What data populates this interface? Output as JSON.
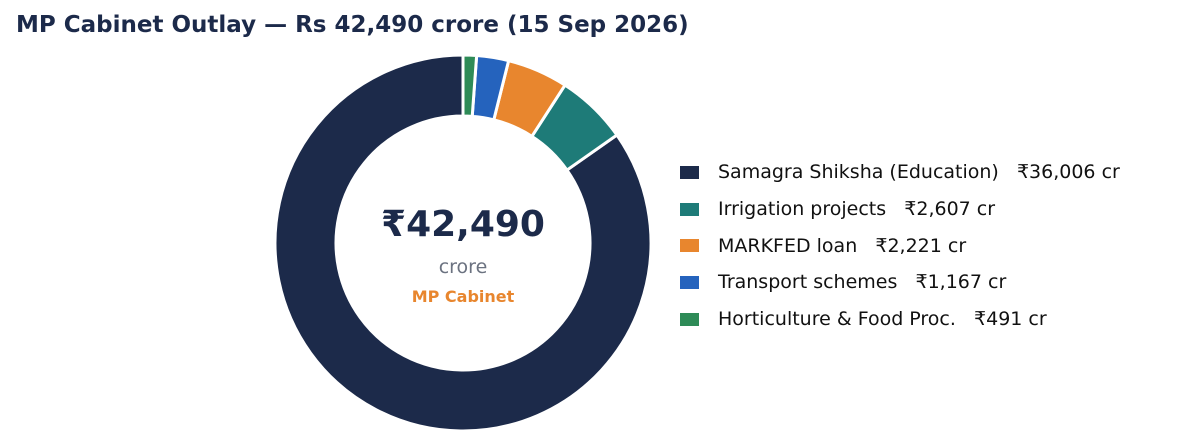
{
  "chart_data": {
    "type": "pie",
    "donut": true,
    "title": "MP Cabinet Outlay — Rs 42,490 crore (15 Sep 2026)",
    "center": {
      "value": "₹42,490",
      "unit": "crore",
      "caption": "MP Cabinet"
    },
    "slices": [
      {
        "label": "Samagra Shiksha (Education)",
        "value": 36006,
        "value_label": "₹36,006 cr",
        "color": "#1c2a4a"
      },
      {
        "label": "Irrigation projects",
        "value": 2607,
        "value_label": "₹2,607 cr",
        "color": "#1e7b78"
      },
      {
        "label": "MARKFED loan",
        "value": 2221,
        "value_label": "₹2,221 cr",
        "color": "#e8862e"
      },
      {
        "label": "Transport schemes",
        "value": 1167,
        "value_label": "₹1,167 cr",
        "color": "#2563bd"
      },
      {
        "label": "Horticulture & Food Proc.",
        "value": 491,
        "value_label": "₹491 cr",
        "color": "#2e8b57"
      }
    ],
    "legend_position": "right",
    "start_angle": "top, counter-clockwise"
  }
}
